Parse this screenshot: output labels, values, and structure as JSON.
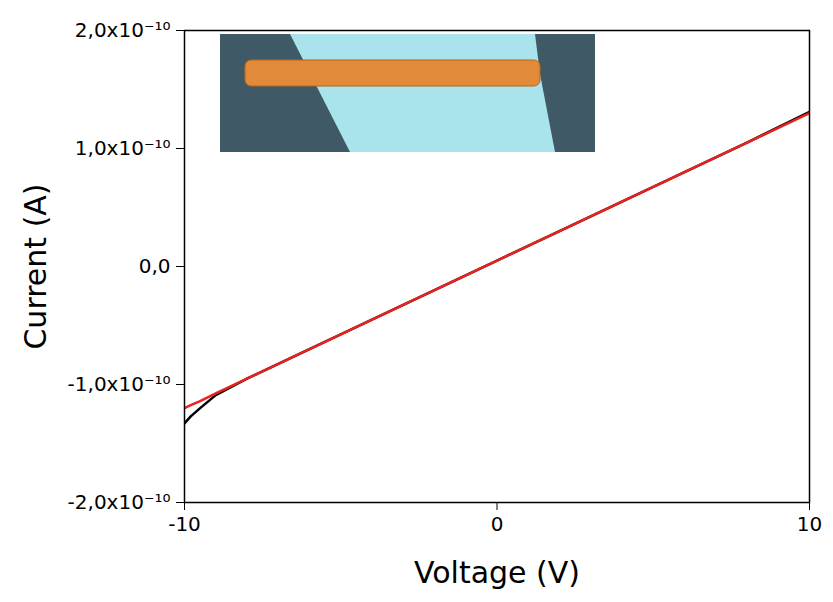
{
  "chart_data": {
    "type": "line",
    "x_label": "Voltage (V)",
    "y_label": "Current (A)",
    "x": [
      -10,
      -9.8,
      -9.5,
      -9,
      -8,
      -6,
      -4,
      -2,
      0,
      2,
      4,
      6,
      8,
      10
    ],
    "series": [
      {
        "color": "#000000",
        "values": [
          -1.33e-10,
          -1.27e-10,
          -1.2e-10,
          -1.09e-10,
          -9.5e-11,
          -7e-11,
          -4.5e-11,
          -2e-11,
          5e-12,
          3e-11,
          5.5e-11,
          8e-11,
          1.05e-10,
          1.31e-10
        ]
      },
      {
        "color": "#e8231f",
        "values": [
          -1.2e-10,
          -1.175e-10,
          -1.14e-10,
          -1.075e-10,
          -9.5e-11,
          -7e-11,
          -4.5e-11,
          -2e-11,
          5e-12,
          3e-11,
          5.5e-11,
          8e-11,
          1.05e-10,
          1.3e-10
        ]
      }
    ],
    "xlim": [
      -10,
      10
    ],
    "xticks": [
      -10,
      0,
      10
    ],
    "ylim": [
      -2e-10,
      2e-10
    ],
    "yticks": [
      {
        "value": -2e-10,
        "label": "-2,0x10⁻¹⁰"
      },
      {
        "value": -1e-10,
        "label": "-1,0x10⁻¹⁰"
      },
      {
        "value": 0,
        "label": "0,0"
      },
      {
        "value": 1e-10,
        "label": "1,0x10⁻¹⁰"
      },
      {
        "value": 2e-10,
        "label": "2,0x10⁻¹⁰"
      }
    ],
    "grid": false
  }
}
